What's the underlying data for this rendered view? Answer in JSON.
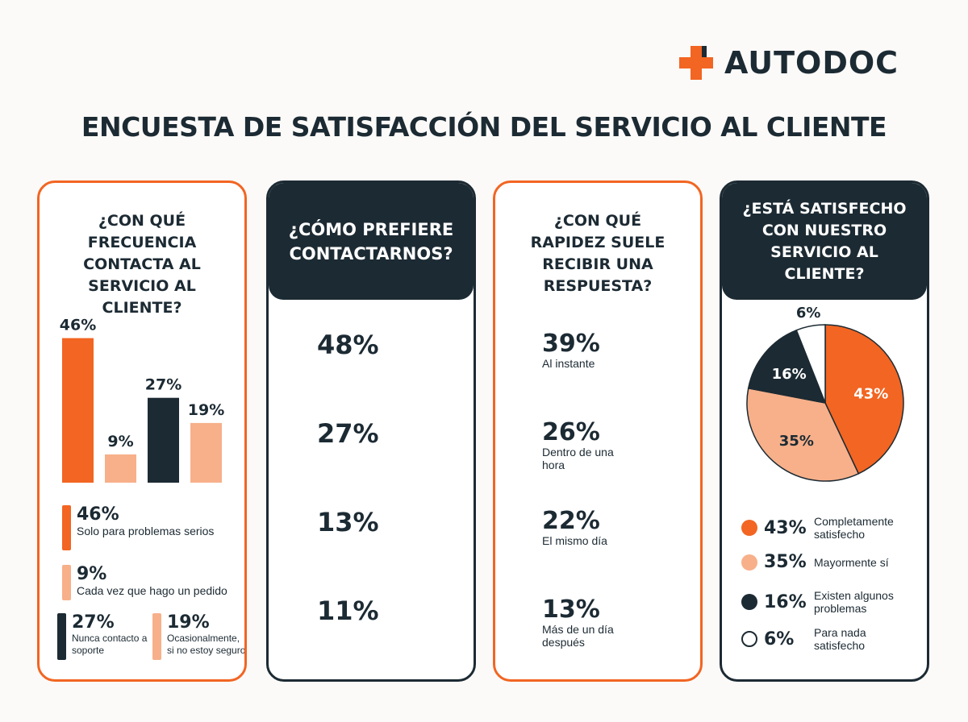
{
  "brand": {
    "name": "AUTODOC",
    "color": "#f26522"
  },
  "title": "ENCUESTA DE SATISFACCIÓN DEL SERVICIO AL CLIENTE",
  "colors": {
    "orange": "#f26522",
    "peach": "#f7b08a",
    "dark": "#1c2a33",
    "white": "#ffffff"
  },
  "panel1": {
    "question": "¿CON QUÉ FRECUENCIA CONTACTA AL SERVICIO AL CLIENTE?",
    "legend": [
      {
        "value": "46%",
        "label": "Solo para problemas serios",
        "color": "orange"
      },
      {
        "value": "9%",
        "label": "Cada vez que hago un pedido",
        "color": "peach"
      },
      {
        "value": "27%",
        "label": "Nunca contacto a soporte",
        "color": "dark"
      },
      {
        "value": "19%",
        "label": "Ocasionalmente, si no estoy seguro",
        "color": "peach"
      }
    ]
  },
  "panel2": {
    "question": "¿CÓMO PREFIERE CONTACTARNOS?",
    "items": [
      {
        "icon": "chat-icon",
        "value": "48%"
      },
      {
        "icon": "phone-icon",
        "value": "27%"
      },
      {
        "icon": "email-icon",
        "value": "13%"
      },
      {
        "icon": "facebook-icon",
        "value": "11%"
      }
    ]
  },
  "panel3": {
    "question": "¿CON QUÉ RAPIDEZ SUELE RECIBIR UNA RESPUESTA?",
    "items": [
      {
        "icon": "stopwatch-icon",
        "value": "39%",
        "label": "Al instante",
        "color": "orange"
      },
      {
        "icon": "stopwatch-icon",
        "value": "26%",
        "label": "Dentro de una hora",
        "color": "peach"
      },
      {
        "icon": "stopwatch-icon",
        "value": "22%",
        "label": "El mismo día",
        "color": "dark"
      },
      {
        "icon": "stopwatch-icon",
        "value": "13%",
        "label": "Más de un día después",
        "color": "peach"
      }
    ]
  },
  "panel4": {
    "question": "¿ESTÁ SATISFECHO CON NUESTRO SERVICIO AL CLIENTE?",
    "legend": [
      {
        "value": "43%",
        "label": "Completamente satisfecho",
        "color": "orange"
      },
      {
        "value": "35%",
        "label": "Mayormente sí",
        "color": "peach"
      },
      {
        "value": "16%",
        "label": "Existen algunos problemas",
        "color": "dark"
      },
      {
        "value": "6%",
        "label": "Para nada satisfecho",
        "color": "white"
      }
    ]
  },
  "chart_data": [
    {
      "type": "bar",
      "categories": [
        "Solo para problemas serios",
        "Cada vez que hago un pedido",
        "Nunca contacto a soporte",
        "Ocasionalmente, si no estoy seguro"
      ],
      "values": [
        46,
        9,
        27,
        19
      ],
      "data_labels": [
        "46%",
        "9%",
        "27%",
        "19%"
      ],
      "colors": [
        "#f26522",
        "#f7b08a",
        "#1c2a33",
        "#f7b08a"
      ],
      "grid": false
    },
    {
      "type": "pie",
      "categories": [
        "Completamente satisfecho",
        "Mayormente sí",
        "Existen algunos problemas",
        "Para nada satisfecho"
      ],
      "values": [
        43,
        35,
        16,
        6
      ],
      "data_labels": [
        "43%",
        "35%",
        "16%",
        "6%"
      ],
      "colors": [
        "#f26522",
        "#f7b08a",
        "#1c2a33",
        "#ffffff"
      ]
    }
  ]
}
